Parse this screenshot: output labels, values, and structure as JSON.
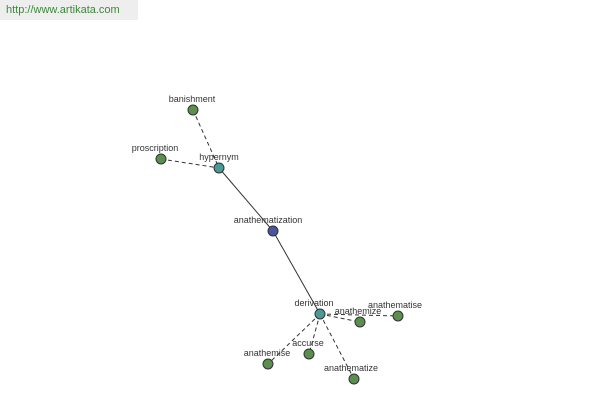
{
  "header": {
    "url": "http://www.artikata.com"
  },
  "nodes": [
    {
      "label": "banishment"
    },
    {
      "label": "proscription"
    },
    {
      "label": "hypernym"
    },
    {
      "label": "anathematization"
    },
    {
      "label": "derivation"
    },
    {
      "label": "anathemize"
    },
    {
      "label": "anathematise"
    },
    {
      "label": "accurse"
    },
    {
      "label": "anathemise"
    },
    {
      "label": "anathematize"
    }
  ]
}
